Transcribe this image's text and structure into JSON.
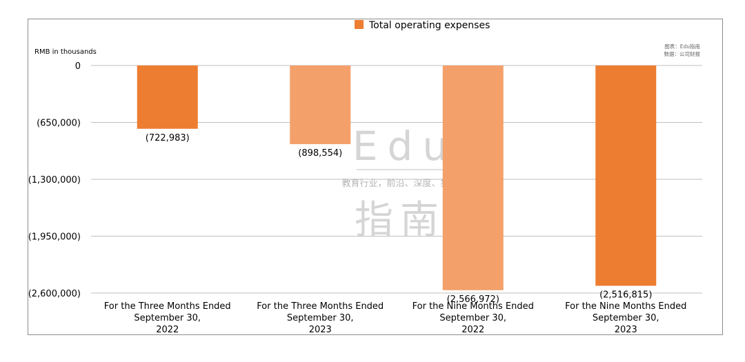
{
  "chart_data": {
    "type": "bar",
    "legend": {
      "label": "Total operating expenses",
      "position": "top-center"
    },
    "unit_label": "RMB in thousands",
    "source": {
      "line1": "图表：Edu指南",
      "line2": "数据：公司财报"
    },
    "watermark": {
      "big1": "Edu",
      "slogan": "教育行业，前沿、深度、独家",
      "big2": "指南"
    },
    "y_ticks": [
      {
        "value": 0,
        "label": "0"
      },
      {
        "value": -650000,
        "label": "(650,000)"
      },
      {
        "value": -1300000,
        "label": "(1,300,000)"
      },
      {
        "value": -1950000,
        "label": "(1,950,000)"
      },
      {
        "value": -2600000,
        "label": "(2,600,000)"
      }
    ],
    "ylim": [
      -2600000,
      0
    ],
    "grid": true,
    "categories": [
      {
        "line1": "For the Three Months Ended",
        "line2": "September 30,",
        "line3": "2022"
      },
      {
        "line1": "For the Three Months Ended",
        "line2": "September 30,",
        "line3": "2023"
      },
      {
        "line1": "For the Nine Months Ended",
        "line2": "September 30,",
        "line3": "2022"
      },
      {
        "line1": "For the Nine Months Ended",
        "line2": "September 30,",
        "line3": "2023"
      }
    ],
    "values": [
      -722983,
      -898554,
      -2566972,
      -2516815
    ],
    "value_labels": [
      "(722,983)",
      "(898,554)",
      "(2,566,972)",
      "(2,516,815)"
    ],
    "bar_colors": [
      "#ED7D31",
      "#F4A06A",
      "#F4A06A",
      "#ED7D31"
    ],
    "legend_color": "#ED7D31"
  }
}
